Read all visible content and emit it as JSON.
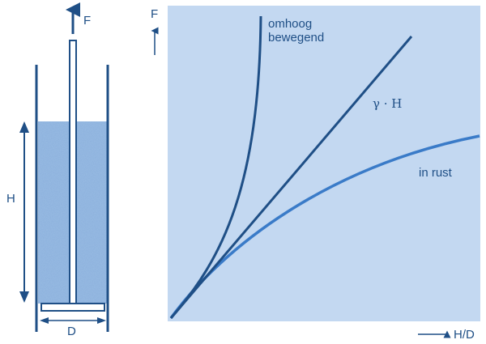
{
  "colors": {
    "dark_blue": "#1f4f86",
    "mid_blue": "#3a7bc8",
    "panel_bg": "#c3d8f1",
    "sand": "#8fb3de"
  },
  "apparatus": {
    "force_label": "F",
    "height_label": "H",
    "diameter_label": "D"
  },
  "graph": {
    "y_axis_label": "F",
    "x_axis_label": "H/D"
  },
  "chart_data": {
    "type": "line",
    "title": "",
    "xlabel": "H/D",
    "ylabel": "F",
    "series": [
      {
        "name": "omhoog bewegend",
        "shape": "steep-convex"
      },
      {
        "name": "γ · H",
        "shape": "linear"
      },
      {
        "name": "in rust",
        "shape": "concave-saturating"
      }
    ]
  }
}
